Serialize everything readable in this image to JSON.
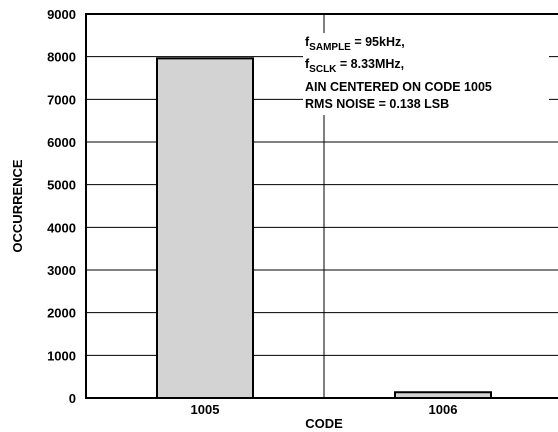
{
  "chart_data": {
    "type": "bar",
    "xlabel": "CODE",
    "ylabel": "OCCURRENCE",
    "categories": [
      "1005",
      "1006"
    ],
    "values": [
      7960,
      135
    ],
    "ylim": [
      0,
      9000
    ],
    "yticks": [
      0,
      1000,
      2000,
      3000,
      4000,
      5000,
      6000,
      7000,
      8000,
      9000
    ],
    "grid": true,
    "bar_color": "#d3d3d3",
    "annotation": {
      "line1_prefix": "f",
      "line1_sub": "SAMPLE",
      "line1_suffix": " = 95kHz,",
      "line2_prefix": "f",
      "line2_sub": "SCLK",
      "line2_suffix": " = 8.33MHz,",
      "line3": "AIN CENTERED ON CODE 1005",
      "line4": "RMS NOISE = 0.138 LSB"
    }
  }
}
